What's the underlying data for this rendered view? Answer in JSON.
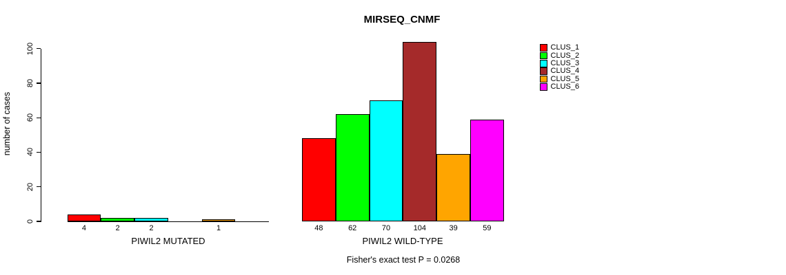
{
  "chart_data": {
    "type": "bar",
    "title": "MIRSEQ_CNMF",
    "ylabel": "number of cases",
    "ylim": [
      0,
      100
    ],
    "yticks": [
      0,
      20,
      40,
      60,
      80,
      100
    ],
    "grid": false,
    "legend_position": "right",
    "categories": [
      "PIWIL2 MUTATED",
      "PIWIL2 WILD-TYPE"
    ],
    "series": [
      {
        "name": "CLUS_1",
        "color": "#FF0000",
        "values": [
          4,
          48
        ]
      },
      {
        "name": "CLUS_2",
        "color": "#00FF00",
        "values": [
          2,
          62
        ]
      },
      {
        "name": "CLUS_3",
        "color": "#00FFFF",
        "values": [
          2,
          70
        ]
      },
      {
        "name": "CLUS_4",
        "color": "#A52A2A",
        "values": [
          0,
          104
        ]
      },
      {
        "name": "CLUS_5",
        "color": "#FFA500",
        "values": [
          1,
          39
        ]
      },
      {
        "name": "CLUS_6",
        "color": "#FF00FF",
        "values": [
          0,
          59
        ]
      }
    ],
    "bar_label_rule": "each bar's value printed beneath it; zero values draw no bar and no label",
    "annotation": "Fisher's exact test P = 0.0268"
  }
}
